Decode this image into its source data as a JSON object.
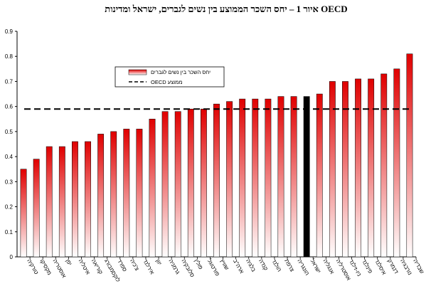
{
  "chart_data": {
    "type": "bar",
    "title": "איור 1 – יחס השכר הממוצע בין נשים לגברים, ישראל ומדינות OECD",
    "xlabel": "",
    "ylabel": "",
    "ylim": [
      0,
      0.9
    ],
    "yticks": [
      "0",
      "0.1",
      "0.2",
      "0.3",
      "0.4",
      "0.5",
      "0.6",
      "0.7",
      "0.8",
      "0.9"
    ],
    "grid": false,
    "legend_position": "upper-left",
    "categories": [
      "טורקיה",
      "מקסיקו",
      "אוסטריה",
      "יפן",
      "איטליה",
      "קוריאה",
      "לוקסמבורג",
      "ספרד",
      "צ'כיה",
      "אירלנד",
      "יוון",
      "גרמניה",
      "סלובקיה",
      "פולין",
      "פורטוגל",
      "שוויץ",
      "ארה\"ב",
      "בלגיה",
      "קנדה",
      "הולנד",
      "צרפת",
      "הונגריה",
      "ישראל",
      "אנגליה",
      "אוסטרליה",
      "ניו-זילנד",
      "פינלנד",
      "איסלנד",
      "דנמרק",
      "נורבגיה",
      "שבדיה"
    ],
    "series": [
      {
        "name": "יחס השכר בין נשים לגברים",
        "values": [
          0.35,
          0.39,
          0.44,
          0.44,
          0.46,
          0.46,
          0.49,
          0.5,
          0.51,
          0.51,
          0.55,
          0.58,
          0.58,
          0.59,
          0.59,
          0.61,
          0.62,
          0.63,
          0.63,
          0.63,
          0.64,
          0.64,
          0.64,
          0.65,
          0.7,
          0.7,
          0.71,
          0.71,
          0.73,
          0.75,
          0.81
        ],
        "highlight_category": "ישראל",
        "colors": {
          "top": "#e00000",
          "bottom": "#ffffff",
          "highlight": "#000000"
        }
      }
    ],
    "reference_line": {
      "name": "OECD ממוצע",
      "value": 0.59,
      "style": "dashed",
      "color": "#000000"
    }
  }
}
